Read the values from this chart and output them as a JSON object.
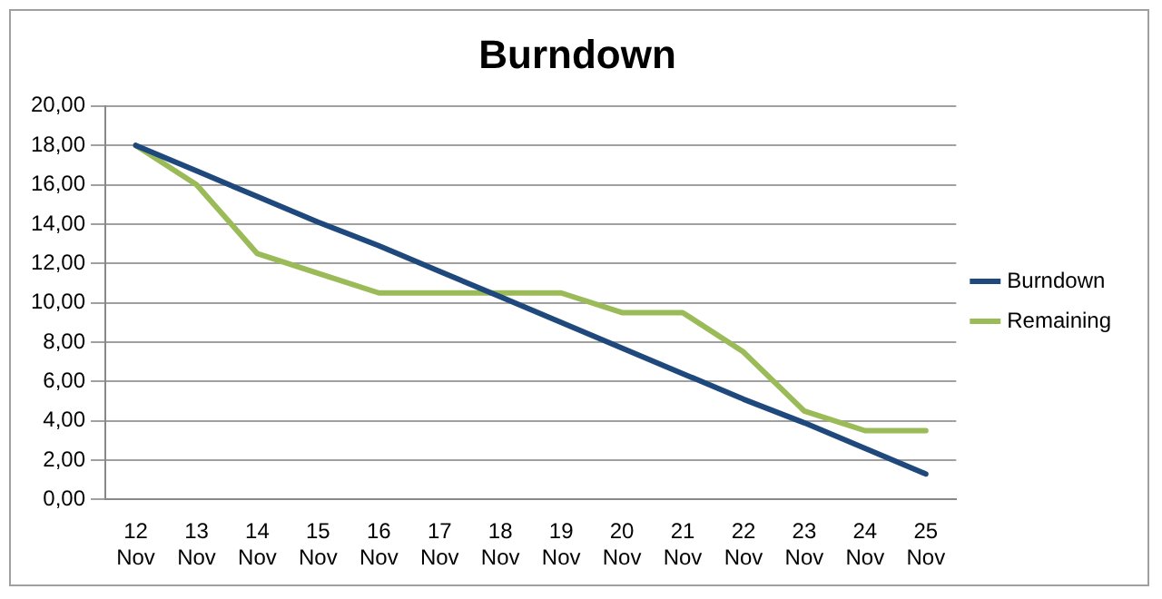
{
  "chart_data": {
    "type": "line",
    "title": "Burndown",
    "categories": [
      "12 Nov",
      "13 Nov",
      "14 Nov",
      "15 Nov",
      "16 Nov",
      "17 Nov",
      "18 Nov",
      "19 Nov",
      "20 Nov",
      "21 Nov",
      "22 Nov",
      "23 Nov",
      "24 Nov",
      "25 Nov"
    ],
    "series": [
      {
        "name": "Burndown",
        "color": "#1f497d",
        "values": [
          18,
          16.7,
          15.4,
          14.1,
          12.9,
          11.6,
          10.3,
          9,
          7.7,
          6.4,
          5.1,
          3.9,
          2.6,
          1.3
        ]
      },
      {
        "name": "Remaining",
        "color": "#9bbb59",
        "values": [
          18,
          16,
          12.5,
          11.5,
          10.5,
          10.5,
          10.5,
          10.5,
          9.5,
          9.5,
          7.5,
          4.5,
          3.5,
          3.5
        ]
      }
    ],
    "ylim": [
      0,
      20
    ],
    "yticks": [
      {
        "value": 0,
        "label": "0,00"
      },
      {
        "value": 2,
        "label": "2,00"
      },
      {
        "value": 4,
        "label": "4,00"
      },
      {
        "value": 6,
        "label": "6,00"
      },
      {
        "value": 8,
        "label": "8,00"
      },
      {
        "value": 10,
        "label": "10,00"
      },
      {
        "value": 12,
        "label": "12,00"
      },
      {
        "value": 14,
        "label": "14,00"
      },
      {
        "value": 16,
        "label": "16,00"
      },
      {
        "value": 18,
        "label": "18,00"
      },
      {
        "value": 20,
        "label": "20,00"
      }
    ],
    "grid": "y",
    "legend": "right",
    "marker": "none",
    "line_style": "solid"
  }
}
